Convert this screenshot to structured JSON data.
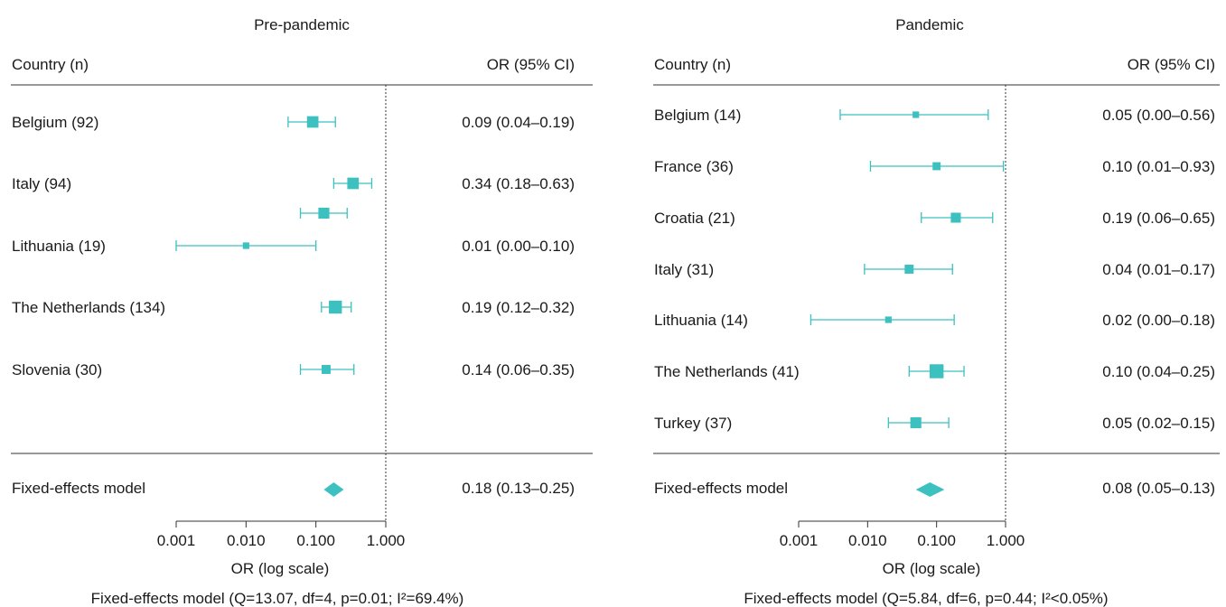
{
  "chart_data": [
    {
      "type": "forest",
      "title": "Pre-pandemic",
      "col_country": "Country (n)",
      "col_or": "OR (95% CI)",
      "xlabel": "OR (log scale)",
      "x_scale": "log",
      "xlim": [
        0.001,
        1.0
      ],
      "xticks": [
        "0.001",
        "0.010",
        "0.100",
        "1.000"
      ],
      "reference_line": 1.0,
      "color": "#3cc1c0",
      "rows": [
        {
          "label": "Belgium (92)",
          "or": 0.09,
          "lo": 0.04,
          "hi": 0.19,
          "text": "0.09 (0.04–0.19)",
          "weight": 0.7
        },
        {
          "label": "Italy (94)",
          "or": 0.34,
          "lo": 0.18,
          "hi": 0.63,
          "text": "0.34 (0.18–0.63)",
          "weight": 0.7
        },
        {
          "label": "Lithuania (19)",
          "or": 0.01,
          "lo": 0.001,
          "hi": 0.1,
          "text": "0.01 (0.00–0.10)",
          "weight": 0.2
        },
        {
          "label": "The Netherlands (134)",
          "or": 0.19,
          "lo": 0.12,
          "hi": 0.32,
          "text": "0.19 (0.12–0.32)",
          "weight": 0.85
        },
        {
          "label": "Slovenia (30)",
          "or": 0.14,
          "lo": 0.06,
          "hi": 0.35,
          "text": "0.14 (0.06–0.35)",
          "weight": 0.45
        }
      ],
      "unlabeled_points": [
        {
          "or": 0.13,
          "lo": 0.06,
          "hi": 0.28,
          "weight": 0.65
        }
      ],
      "pooled": {
        "label": "Fixed-effects model",
        "or": 0.18,
        "lo": 0.13,
        "hi": 0.25,
        "text": "0.18 (0.13–0.25)"
      },
      "footnote": "Fixed-effects model (Q=13.07, df=4, p=0.01; I²=69.4%)"
    },
    {
      "type": "forest",
      "title": "Pandemic",
      "col_country": "Country (n)",
      "col_or": "OR (95% CI)",
      "xlabel": "OR (log scale)",
      "x_scale": "log",
      "xlim": [
        0.001,
        1.0
      ],
      "xticks": [
        "0.001",
        "0.010",
        "0.100",
        "1.000"
      ],
      "reference_line": 1.0,
      "color": "#3cc1c0",
      "rows": [
        {
          "label": "Belgium (14)",
          "or": 0.05,
          "lo": 0.004,
          "hi": 0.56,
          "text": "0.05 (0.00–0.56)",
          "weight": 0.2
        },
        {
          "label": "France (36)",
          "or": 0.1,
          "lo": 0.011,
          "hi": 0.93,
          "text": "0.10 (0.01–0.93)",
          "weight": 0.35
        },
        {
          "label": "Croatia (21)",
          "or": 0.19,
          "lo": 0.06,
          "hi": 0.65,
          "text": "0.19 (0.06–0.65)",
          "weight": 0.55
        },
        {
          "label": "Italy (31)",
          "or": 0.04,
          "lo": 0.009,
          "hi": 0.17,
          "text": "0.04 (0.01–0.17)",
          "weight": 0.45
        },
        {
          "label": "Lithuania (14)",
          "or": 0.02,
          "lo": 0.0015,
          "hi": 0.18,
          "text": "0.02 (0.00–0.18)",
          "weight": 0.2
        },
        {
          "label": "The Netherlands (41)",
          "or": 0.1,
          "lo": 0.04,
          "hi": 0.25,
          "text": "0.10 (0.04–0.25)",
          "weight": 0.95
        },
        {
          "label": "Turkey (37)",
          "or": 0.05,
          "lo": 0.02,
          "hi": 0.15,
          "text": "0.05 (0.02–0.15)",
          "weight": 0.65
        }
      ],
      "unlabeled_points": [],
      "pooled": {
        "label": "Fixed-effects model",
        "or": 0.08,
        "lo": 0.05,
        "hi": 0.13,
        "text": "0.08 (0.05–0.13)"
      },
      "footnote": "Fixed-effects model (Q=5.84, df=6, p=0.44; I²<0.05%)"
    }
  ]
}
